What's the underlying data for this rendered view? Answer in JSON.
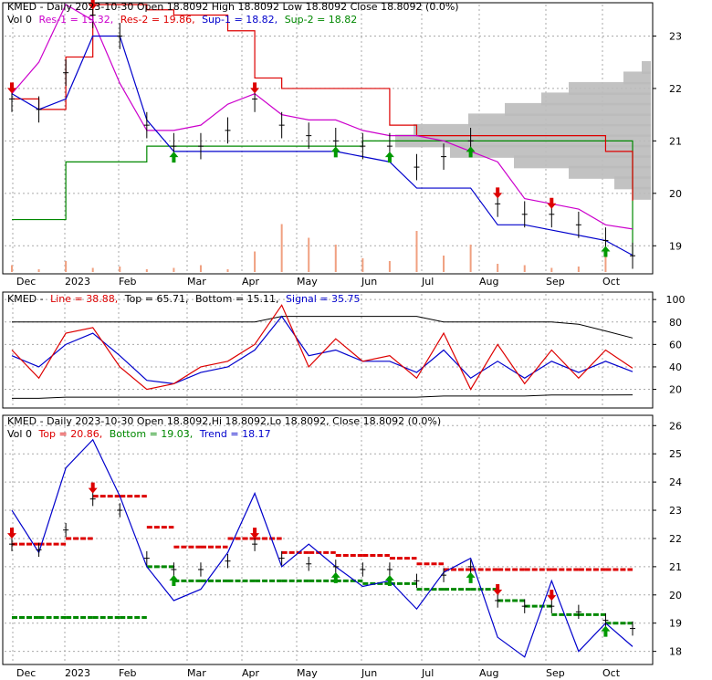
{
  "colors": {
    "black": "#000000",
    "magenta": "#cc00cc",
    "red": "#dd0000",
    "blue": "#0000cc",
    "green": "#008800",
    "volume": "#f0a080",
    "profile": "#bbbbbb",
    "arrow_up": "#009900",
    "arrow_down": "#dd0000"
  },
  "months": [
    "Dec",
    "2023",
    "Feb",
    "Mar",
    "Apr",
    "May",
    "Jun",
    "Jul",
    "Aug",
    "Sep",
    "Oct"
  ],
  "panel1": {
    "header": {
      "line1": "KMED - Daily 2023-10-30 Open 18.8092  High 18.8092  Low 18.8092  Close 18.8092 (0.0%)",
      "vol": "Vol 0",
      "res1": "Res-1 = 19.32,",
      "res2": "Res-2 = 19.86,",
      "sup1": "Sup-1 = 18.82,",
      "sup2": "Sup-2 = 18.82"
    },
    "yticks": [
      "23",
      "22",
      "21",
      "20",
      "19"
    ]
  },
  "panel2": {
    "header": {
      "kmed": "KMED -",
      "line": "Line = 38.88,",
      "top": "Top = 65.71,",
      "bottom": "Bottom = 15.11,",
      "signal": "Signal = 35.75"
    },
    "yticks": [
      "100",
      "80",
      "60",
      "40",
      "20"
    ]
  },
  "panel3": {
    "header": {
      "line1": "KMED - Daily 2023-10-30 Open 18.8092,Hi 18.8092,Lo 18.8092, Close 18.8092 (0.0%)",
      "vol": "Vol 0",
      "top": "Top = 20.86,",
      "bottom": "Bottom = 19.03,",
      "trend": "Trend = 18.17"
    },
    "yticks": [
      "26",
      "25",
      "24",
      "23",
      "22",
      "21",
      "20",
      "19",
      "18"
    ]
  },
  "chart_data": [
    {
      "type": "line",
      "title": "KMED - Daily 2023-10-30",
      "x": [
        "2022-12-05",
        "2022-12-19",
        "2023-01-03",
        "2023-01-17",
        "2023-01-31",
        "2023-02-14",
        "2023-02-28",
        "2023-03-14",
        "2023-03-28",
        "2023-04-11",
        "2023-04-25",
        "2023-05-09",
        "2023-05-23",
        "2023-06-06",
        "2023-06-20",
        "2023-07-05",
        "2023-07-19",
        "2023-08-02",
        "2023-08-16",
        "2023-08-30",
        "2023-09-13",
        "2023-09-27",
        "2023-10-11",
        "2023-10-30"
      ],
      "series": [
        {
          "name": "Close",
          "values": [
            21.8,
            21.6,
            22.3,
            23.4,
            23.0,
            21.3,
            20.9,
            20.9,
            21.2,
            21.8,
            21.3,
            21.1,
            21.0,
            20.9,
            20.9,
            20.5,
            20.7,
            21.0,
            19.8,
            19.6,
            19.6,
            19.4,
            19.1,
            18.81
          ]
        },
        {
          "name": "Res-1",
          "values": [
            21.9,
            22.5,
            23.6,
            23.3,
            22.1,
            21.2,
            21.2,
            21.3,
            21.7,
            21.9,
            21.5,
            21.4,
            21.4,
            21.2,
            21.1,
            21.1,
            21.0,
            20.8,
            20.6,
            19.9,
            19.8,
            19.7,
            19.4,
            19.32
          ]
        },
        {
          "name": "Res-2",
          "values": [
            21.8,
            21.6,
            22.6,
            23.6,
            23.6,
            23.5,
            23.4,
            23.4,
            23.1,
            22.2,
            22.0,
            22.0,
            22.0,
            22.0,
            21.3,
            21.1,
            21.1,
            21.1,
            21.1,
            21.1,
            21.1,
            21.1,
            20.8,
            19.86
          ]
        },
        {
          "name": "Sup-1",
          "values": [
            21.9,
            21.6,
            21.8,
            23.0,
            23.0,
            21.4,
            20.8,
            20.8,
            20.8,
            20.8,
            20.8,
            20.8,
            20.8,
            20.7,
            20.6,
            20.1,
            20.1,
            20.1,
            19.4,
            19.4,
            19.3,
            19.2,
            19.1,
            18.82
          ]
        },
        {
          "name": "Sup-2",
          "values": [
            19.5,
            19.5,
            20.6,
            20.6,
            20.6,
            20.9,
            20.9,
            20.9,
            20.9,
            20.9,
            20.9,
            20.9,
            20.9,
            21.0,
            21.0,
            21.0,
            21.0,
            21.0,
            21.0,
            21.0,
            21.0,
            21.0,
            21.0,
            18.82
          ]
        }
      ],
      "ylim": [
        18.5,
        23.6
      ]
    },
    {
      "type": "line",
      "title": "KMED - Line",
      "x": [
        "2022-12-05",
        "2022-12-19",
        "2023-01-03",
        "2023-01-17",
        "2023-01-31",
        "2023-02-14",
        "2023-02-28",
        "2023-03-14",
        "2023-03-28",
        "2023-04-11",
        "2023-04-25",
        "2023-05-09",
        "2023-05-23",
        "2023-06-06",
        "2023-06-20",
        "2023-07-05",
        "2023-07-19",
        "2023-08-02",
        "2023-08-16",
        "2023-08-30",
        "2023-09-13",
        "2023-09-27",
        "2023-10-11",
        "2023-10-30"
      ],
      "series": [
        {
          "name": "Line",
          "values": [
            55,
            30,
            70,
            75,
            40,
            20,
            25,
            40,
            45,
            60,
            95,
            40,
            65,
            45,
            50,
            30,
            70,
            20,
            60,
            25,
            55,
            30,
            55,
            38.88
          ]
        },
        {
          "name": "Top",
          "values": [
            80,
            80,
            80,
            80,
            80,
            80,
            80,
            80,
            80,
            80,
            85,
            85,
            85,
            85,
            85,
            85,
            80,
            80,
            80,
            80,
            80,
            78,
            72,
            65.71
          ]
        },
        {
          "name": "Bottom",
          "values": [
            12,
            12,
            13,
            13,
            13,
            13,
            13,
            13,
            13,
            13,
            13,
            13,
            13,
            13,
            13,
            13,
            14,
            14,
            14,
            14,
            15,
            15,
            15,
            15.11
          ]
        },
        {
          "name": "Signal",
          "values": [
            50,
            40,
            60,
            70,
            50,
            28,
            25,
            35,
            40,
            55,
            85,
            50,
            55,
            45,
            45,
            35,
            55,
            30,
            45,
            30,
            45,
            35,
            45,
            35.75
          ]
        }
      ],
      "ylim": [
        5,
        105
      ]
    },
    {
      "type": "line",
      "title": "KMED - Daily 2023-10-30",
      "x": [
        "2022-12-05",
        "2022-12-19",
        "2023-01-03",
        "2023-01-17",
        "2023-01-31",
        "2023-02-14",
        "2023-02-28",
        "2023-03-14",
        "2023-03-28",
        "2023-04-11",
        "2023-04-25",
        "2023-05-09",
        "2023-05-23",
        "2023-06-06",
        "2023-06-20",
        "2023-07-05",
        "2023-07-19",
        "2023-08-02",
        "2023-08-16",
        "2023-08-30",
        "2023-09-13",
        "2023-09-27",
        "2023-10-11",
        "2023-10-30"
      ],
      "series": [
        {
          "name": "Close",
          "values": [
            21.8,
            21.6,
            22.3,
            23.4,
            23.0,
            21.3,
            20.9,
            20.9,
            21.2,
            21.8,
            21.3,
            21.1,
            21.0,
            20.9,
            20.9,
            20.5,
            20.7,
            21.0,
            19.8,
            19.6,
            19.6,
            19.4,
            19.1,
            18.81
          ]
        },
        {
          "name": "Top",
          "values": [
            21.8,
            21.8,
            22.0,
            23.5,
            23.5,
            22.4,
            21.7,
            21.7,
            22.0,
            22.0,
            21.5,
            21.5,
            21.4,
            21.4,
            21.3,
            21.1,
            20.9,
            20.9,
            20.9,
            20.9,
            20.9,
            20.9,
            20.9,
            20.86
          ]
        },
        {
          "name": "Bottom",
          "values": [
            19.2,
            19.2,
            19.2,
            19.2,
            19.2,
            21.0,
            20.5,
            20.5,
            20.5,
            20.5,
            20.5,
            20.5,
            20.5,
            20.4,
            20.4,
            20.2,
            20.2,
            20.2,
            19.8,
            19.6,
            19.3,
            19.3,
            19.0,
            19.03
          ]
        },
        {
          "name": "Trend",
          "values": [
            23.0,
            21.5,
            24.5,
            25.5,
            23.5,
            21.0,
            19.8,
            20.2,
            21.5,
            23.6,
            21.0,
            21.8,
            21.0,
            20.3,
            20.5,
            19.5,
            20.8,
            21.3,
            18.5,
            17.8,
            20.5,
            18.0,
            19.0,
            18.17
          ]
        }
      ],
      "ylim": [
        17.6,
        26.3
      ]
    }
  ]
}
